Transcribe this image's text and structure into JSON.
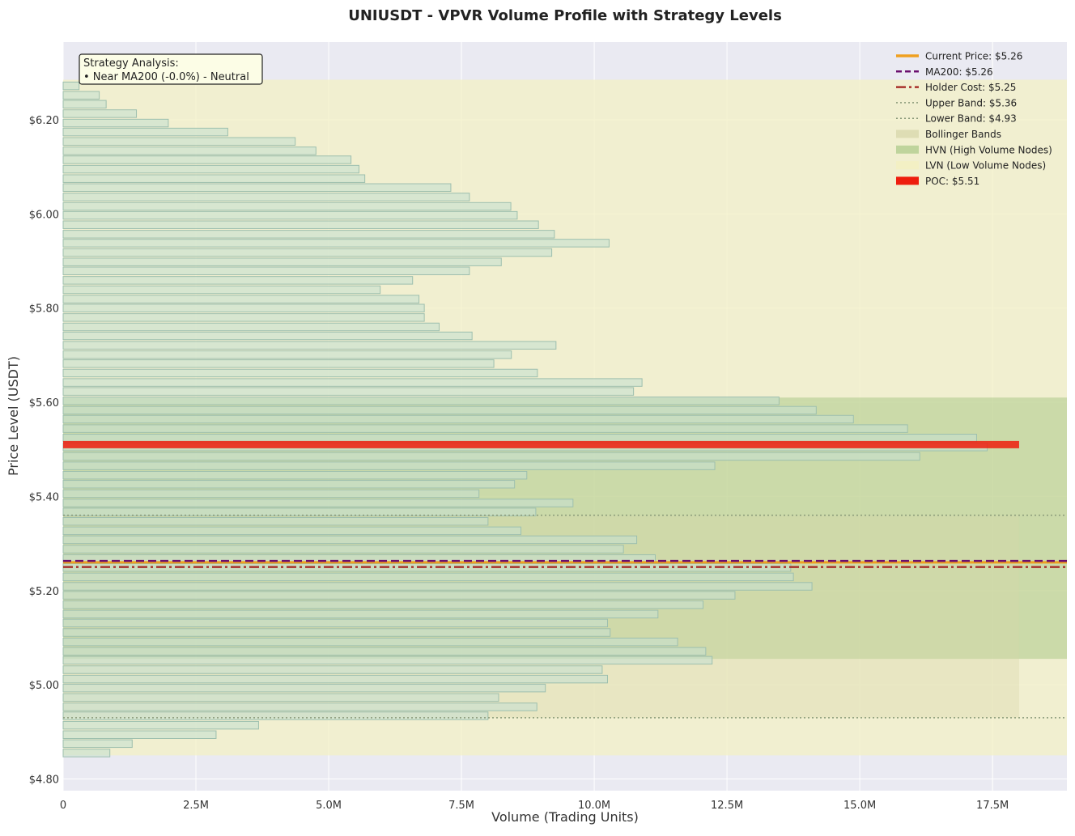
{
  "chart_data": {
    "type": "bar",
    "orientation": "horizontal",
    "title": "UNIUSDT - VPVR Volume Profile with Strategy Levels",
    "xlabel": "Volume (Trading Units)",
    "ylabel": "Price Level (USDT)",
    "xlim": [
      0,
      18900000
    ],
    "ylim": [
      4.775,
      6.365
    ],
    "x_ticks": [
      0,
      2500000,
      5000000,
      7500000,
      10000000,
      12500000,
      15000000,
      17500000
    ],
    "x_tick_labels": [
      "0",
      "2.5M",
      "5.0M",
      "7.5M",
      "10.0M",
      "12.5M",
      "15.0M",
      "17.5M"
    ],
    "y_ticks": [
      4.8,
      5.0,
      5.2,
      5.4,
      5.6,
      5.8,
      6.0,
      6.2
    ],
    "y_tick_labels": [
      "$4.80",
      "$5.00",
      "$5.20",
      "$5.40",
      "$5.60",
      "$5.80",
      "$6.00",
      "$6.20"
    ],
    "grid": true,
    "legend_position": "top-right",
    "bin_height": 0.0197,
    "bins": [
      {
        "price": 4.855,
        "volume": 880000
      },
      {
        "price": 4.875,
        "volume": 1300000
      },
      {
        "price": 4.894,
        "volume": 2880000
      },
      {
        "price": 4.914,
        "volume": 3680000
      },
      {
        "price": 4.934,
        "volume": 8000000
      },
      {
        "price": 4.953,
        "volume": 8920000
      },
      {
        "price": 4.973,
        "volume": 8200000
      },
      {
        "price": 4.993,
        "volume": 9080000
      },
      {
        "price": 5.012,
        "volume": 10250000
      },
      {
        "price": 5.032,
        "volume": 10150000
      },
      {
        "price": 5.052,
        "volume": 12220000
      },
      {
        "price": 5.071,
        "volume": 12100000
      },
      {
        "price": 5.091,
        "volume": 11570000
      },
      {
        "price": 5.111,
        "volume": 10300000
      },
      {
        "price": 5.131,
        "volume": 10250000
      },
      {
        "price": 5.15,
        "volume": 11200000
      },
      {
        "price": 5.17,
        "volume": 12050000
      },
      {
        "price": 5.19,
        "volume": 12650000
      },
      {
        "price": 5.209,
        "volume": 14100000
      },
      {
        "price": 5.229,
        "volume": 13750000
      },
      {
        "price": 5.249,
        "volume": 13700000
      },
      {
        "price": 5.268,
        "volume": 11150000
      },
      {
        "price": 5.288,
        "volume": 10550000
      },
      {
        "price": 5.308,
        "volume": 10800000
      },
      {
        "price": 5.327,
        "volume": 8620000
      },
      {
        "price": 5.347,
        "volume": 8000000
      },
      {
        "price": 5.367,
        "volume": 8900000
      },
      {
        "price": 5.386,
        "volume": 9600000
      },
      {
        "price": 5.406,
        "volume": 7830000
      },
      {
        "price": 5.426,
        "volume": 8500000
      },
      {
        "price": 5.445,
        "volume": 8730000
      },
      {
        "price": 5.465,
        "volume": 12270000
      },
      {
        "price": 5.485,
        "volume": 16130000
      },
      {
        "price": 5.505,
        "volume": 17400000
      },
      {
        "price": 5.524,
        "volume": 17200000
      },
      {
        "price": 5.544,
        "volume": 15900000
      },
      {
        "price": 5.564,
        "volume": 14880000
      },
      {
        "price": 5.583,
        "volume": 14180000
      },
      {
        "price": 5.603,
        "volume": 13480000
      },
      {
        "price": 5.623,
        "volume": 10740000
      },
      {
        "price": 5.642,
        "volume": 10900000
      },
      {
        "price": 5.662,
        "volume": 8930000
      },
      {
        "price": 5.682,
        "volume": 8110000
      },
      {
        "price": 5.701,
        "volume": 8440000
      },
      {
        "price": 5.721,
        "volume": 9280000
      },
      {
        "price": 5.741,
        "volume": 7700000
      },
      {
        "price": 5.76,
        "volume": 7080000
      },
      {
        "price": 5.78,
        "volume": 6800000
      },
      {
        "price": 5.8,
        "volume": 6800000
      },
      {
        "price": 5.819,
        "volume": 6700000
      },
      {
        "price": 5.839,
        "volume": 5970000
      },
      {
        "price": 5.859,
        "volume": 6580000
      },
      {
        "price": 5.879,
        "volume": 7650000
      },
      {
        "price": 5.898,
        "volume": 8250000
      },
      {
        "price": 5.918,
        "volume": 9200000
      },
      {
        "price": 5.938,
        "volume": 10280000
      },
      {
        "price": 5.957,
        "volume": 9250000
      },
      {
        "price": 5.977,
        "volume": 8950000
      },
      {
        "price": 5.997,
        "volume": 8550000
      },
      {
        "price": 6.016,
        "volume": 8430000
      },
      {
        "price": 6.036,
        "volume": 7650000
      },
      {
        "price": 6.056,
        "volume": 7300000
      },
      {
        "price": 6.075,
        "volume": 5680000
      },
      {
        "price": 6.095,
        "volume": 5570000
      },
      {
        "price": 6.115,
        "volume": 5420000
      },
      {
        "price": 6.134,
        "volume": 4760000
      },
      {
        "price": 6.154,
        "volume": 4370000
      },
      {
        "price": 6.174,
        "volume": 3100000
      },
      {
        "price": 6.193,
        "volume": 1980000
      },
      {
        "price": 6.213,
        "volume": 1380000
      },
      {
        "price": 6.233,
        "volume": 810000
      },
      {
        "price": 6.252,
        "volume": 680000
      },
      {
        "price": 6.272,
        "volume": 300000
      }
    ],
    "poc": {
      "price": 5.51,
      "volume": 18000000,
      "label": "POC: $5.51",
      "color": "#ee1d0e"
    },
    "levels": {
      "current_price": {
        "value": 5.26,
        "label": "Current Price: $5.26",
        "color": "#f0a020",
        "style": "solid"
      },
      "ma200": {
        "value": 5.263,
        "label": "MA200: $5.26",
        "color": "#6b0f6e",
        "style": "dashed"
      },
      "holder_cost": {
        "value": 5.25,
        "label": "Holder Cost: $5.25",
        "color": "#a8322b",
        "style": "dashdot"
      },
      "upper_band": {
        "value": 5.36,
        "label": "Upper Band: $5.36",
        "color": "#8a9a7a",
        "style": "dotted"
      },
      "lower_band": {
        "value": 4.93,
        "label": "Lower Band: $4.93",
        "color": "#8a9a7a",
        "style": "dotted"
      }
    },
    "zones": {
      "bollinger": {
        "from": 4.93,
        "to": 5.36,
        "volume_extent": 18000000,
        "label": "Bollinger Bands",
        "color": "#d6d6a8"
      },
      "hvn": {
        "from": 5.055,
        "to": 5.61,
        "label": "HVN (High Volume Nodes)",
        "color": "#9ec27a"
      },
      "lvn": {
        "from": 4.85,
        "to": 6.285,
        "label": "LVN (Low Volume Nodes)",
        "color": "#f3f0c4"
      }
    },
    "annotation": {
      "title": "Strategy Analysis:",
      "line": "• Near MA200 (-0.0%) - Neutral"
    },
    "colors": {
      "plot_background": "#eaeaf2",
      "bar_fill": "#c6e0d0",
      "bar_edge": "#9dbfae"
    }
  }
}
